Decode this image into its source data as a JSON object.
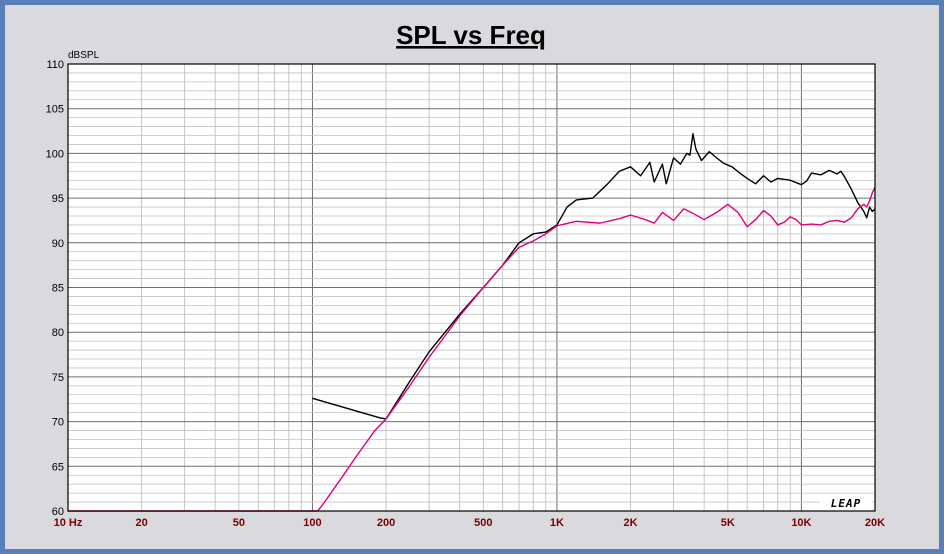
{
  "chart_data": {
    "type": "line",
    "title": "SPL vs Freq",
    "ylabel": "dBSPL",
    "xlabel": "",
    "xscale": "log",
    "xlim": [
      10,
      20000
    ],
    "ylim": [
      60,
      110
    ],
    "yticks": [
      60,
      65,
      70,
      75,
      80,
      85,
      90,
      95,
      100,
      105,
      110
    ],
    "xticks": [
      {
        "value": 10,
        "label": "10 Hz"
      },
      {
        "value": 20,
        "label": "20"
      },
      {
        "value": 50,
        "label": "50"
      },
      {
        "value": 100,
        "label": "100"
      },
      {
        "value": 200,
        "label": "200"
      },
      {
        "value": 500,
        "label": "500"
      },
      {
        "value": 1000,
        "label": "1K"
      },
      {
        "value": 2000,
        "label": "2K"
      },
      {
        "value": 5000,
        "label": "5K"
      },
      {
        "value": 10000,
        "label": "10K"
      },
      {
        "value": 20000,
        "label": "20K"
      }
    ],
    "grid": true,
    "watermark": "LEAP",
    "series": [
      {
        "color": "#000000",
        "points": [
          [
            100,
            72.6
          ],
          [
            190,
            70.4
          ],
          [
            200,
            70.3
          ],
          [
            250,
            74.5
          ],
          [
            300,
            77.8
          ],
          [
            400,
            82.0
          ],
          [
            500,
            85.0
          ],
          [
            600,
            87.5
          ],
          [
            700,
            90.0
          ],
          [
            800,
            91.0
          ],
          [
            900,
            91.2
          ],
          [
            1000,
            92.0
          ],
          [
            1100,
            94.0
          ],
          [
            1200,
            94.8
          ],
          [
            1400,
            95.0
          ],
          [
            1600,
            96.5
          ],
          [
            1800,
            98.0
          ],
          [
            2000,
            98.5
          ],
          [
            2200,
            97.5
          ],
          [
            2400,
            99.0
          ],
          [
            2500,
            96.8
          ],
          [
            2700,
            98.8
          ],
          [
            2800,
            96.6
          ],
          [
            3000,
            99.5
          ],
          [
            3200,
            98.8
          ],
          [
            3400,
            100.0
          ],
          [
            3500,
            99.8
          ],
          [
            3600,
            102.2
          ],
          [
            3700,
            100.5
          ],
          [
            3900,
            99.2
          ],
          [
            4200,
            100.2
          ],
          [
            4500,
            99.5
          ],
          [
            4800,
            98.9
          ],
          [
            5200,
            98.5
          ],
          [
            5600,
            97.8
          ],
          [
            6000,
            97.2
          ],
          [
            6500,
            96.6
          ],
          [
            7000,
            97.5
          ],
          [
            7500,
            96.8
          ],
          [
            8000,
            97.2
          ],
          [
            9000,
            97.0
          ],
          [
            10000,
            96.5
          ],
          [
            10500,
            96.9
          ],
          [
            11000,
            97.8
          ],
          [
            12000,
            97.6
          ],
          [
            13000,
            98.1
          ],
          [
            14000,
            97.7
          ],
          [
            14500,
            98.0
          ],
          [
            15000,
            97.4
          ],
          [
            16000,
            96.0
          ],
          [
            17000,
            94.5
          ],
          [
            18000,
            93.5
          ],
          [
            18500,
            92.8
          ],
          [
            19000,
            94.0
          ],
          [
            19500,
            93.5
          ],
          [
            20000,
            93.8
          ]
        ]
      },
      {
        "color": "#e0007a",
        "points": [
          [
            10,
            60.0
          ],
          [
            105,
            60.0
          ],
          [
            110,
            60.7
          ],
          [
            130,
            63.5
          ],
          [
            150,
            66.0
          ],
          [
            180,
            69.0
          ],
          [
            200,
            70.3
          ],
          [
            250,
            74.0
          ],
          [
            300,
            77.2
          ],
          [
            400,
            81.8
          ],
          [
            500,
            85.0
          ],
          [
            600,
            87.5
          ],
          [
            700,
            89.5
          ],
          [
            800,
            90.2
          ],
          [
            900,
            91.0
          ],
          [
            1000,
            91.9
          ],
          [
            1200,
            92.4
          ],
          [
            1500,
            92.2
          ],
          [
            1800,
            92.7
          ],
          [
            2000,
            93.1
          ],
          [
            2300,
            92.6
          ],
          [
            2500,
            92.2
          ],
          [
            2700,
            93.4
          ],
          [
            3000,
            92.5
          ],
          [
            3300,
            93.8
          ],
          [
            3600,
            93.3
          ],
          [
            4000,
            92.6
          ],
          [
            4500,
            93.4
          ],
          [
            5000,
            94.3
          ],
          [
            5500,
            93.4
          ],
          [
            6000,
            91.8
          ],
          [
            6500,
            92.6
          ],
          [
            7000,
            93.6
          ],
          [
            7500,
            93.0
          ],
          [
            8000,
            92.0
          ],
          [
            8500,
            92.3
          ],
          [
            9000,
            92.9
          ],
          [
            9500,
            92.6
          ],
          [
            10000,
            92.0
          ],
          [
            11000,
            92.1
          ],
          [
            12000,
            92.0
          ],
          [
            13000,
            92.4
          ],
          [
            14000,
            92.5
          ],
          [
            15000,
            92.3
          ],
          [
            16000,
            92.8
          ],
          [
            17000,
            93.8
          ],
          [
            18000,
            94.3
          ],
          [
            18500,
            94.0
          ],
          [
            19000,
            94.7
          ],
          [
            19500,
            95.6
          ],
          [
            20000,
            96.2
          ]
        ]
      }
    ]
  }
}
